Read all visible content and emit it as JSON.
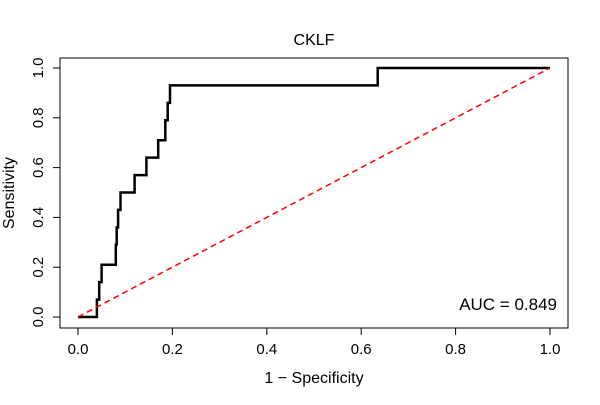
{
  "chart_data": {
    "type": "line",
    "title": "CKLF",
    "xlabel": "1 − Specificity",
    "ylabel": "Sensitivity",
    "xlim": [
      0,
      1
    ],
    "ylim": [
      0,
      1
    ],
    "xticks": [
      0.0,
      0.2,
      0.4,
      0.6,
      0.8,
      1.0
    ],
    "xtick_labels": [
      "0.0",
      "0.2",
      "0.4",
      "0.6",
      "0.8",
      "1.0"
    ],
    "yticks": [
      0.0,
      0.2,
      0.4,
      0.6,
      0.8,
      1.0
    ],
    "ytick_labels": [
      "0.0",
      "0.2",
      "0.4",
      "0.6",
      "0.8",
      "1.0"
    ],
    "annotation": "AUC = 0.849",
    "grid": false,
    "legend": "none",
    "series": [
      {
        "name": "ROC curve",
        "color": "#000000",
        "style": "step",
        "x": [
          0.0,
          0.04,
          0.04,
          0.045,
          0.045,
          0.05,
          0.05,
          0.08,
          0.08,
          0.082,
          0.082,
          0.085,
          0.085,
          0.09,
          0.09,
          0.12,
          0.12,
          0.145,
          0.145,
          0.17,
          0.17,
          0.185,
          0.185,
          0.19,
          0.19,
          0.195,
          0.195,
          0.635,
          0.635,
          1.0
        ],
        "y": [
          0.0,
          0.0,
          0.07,
          0.07,
          0.14,
          0.14,
          0.21,
          0.21,
          0.29,
          0.29,
          0.36,
          0.36,
          0.43,
          0.43,
          0.5,
          0.5,
          0.57,
          0.57,
          0.64,
          0.64,
          0.71,
          0.71,
          0.79,
          0.79,
          0.86,
          0.86,
          0.93,
          0.93,
          1.0,
          1.0
        ]
      },
      {
        "name": "chance line",
        "color": "#ff0000",
        "style": "dashed",
        "x": [
          0.0,
          1.0
        ],
        "y": [
          0.0,
          1.0
        ]
      }
    ]
  }
}
